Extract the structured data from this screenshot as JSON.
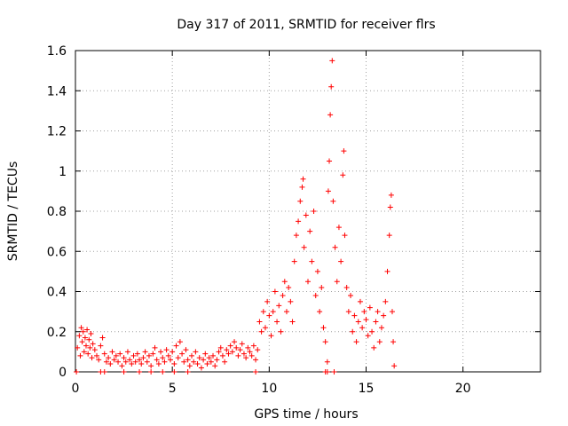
{
  "chart_data": {
    "type": "scatter",
    "title": "Day 317 of 2011, SRMTID for receiver flrs",
    "xlabel": "GPS time / hours",
    "ylabel": "SRMTID / TECUs",
    "xlim": [
      0,
      24
    ],
    "ylim": [
      0,
      1.6
    ],
    "xticks": [
      0,
      5,
      10,
      15,
      20
    ],
    "xtick_labels": [
      "0",
      "5",
      "10",
      "15",
      "20"
    ],
    "yticks": [
      0,
      0.2,
      0.4,
      0.6,
      0.8,
      1.0,
      1.2,
      1.4,
      1.6
    ],
    "ytick_labels": [
      "0",
      "0.2",
      "0.4",
      "0.6",
      "0.8",
      "1",
      "1.2",
      "1.4",
      "1.6"
    ],
    "grid": true,
    "marker": "+",
    "series": [
      {
        "name": "SRMTID",
        "color": "#ff0000",
        "points": [
          [
            0.1,
            0.12
          ],
          [
            0.2,
            0.18
          ],
          [
            0.25,
            0.08
          ],
          [
            0.3,
            0.22
          ],
          [
            0.35,
            0.15
          ],
          [
            0.4,
            0.2
          ],
          [
            0.45,
            0.1
          ],
          [
            0.5,
            0.17
          ],
          [
            0.55,
            0.13
          ],
          [
            0.6,
            0.21
          ],
          [
            0.65,
            0.09
          ],
          [
            0.7,
            0.16
          ],
          [
            0.75,
            0.12
          ],
          [
            0.8,
            0.19
          ],
          [
            0.85,
            0.07
          ],
          [
            0.9,
            0.14
          ],
          [
            1.0,
            0.11
          ],
          [
            1.1,
            0.08
          ],
          [
            1.2,
            0.06
          ],
          [
            1.3,
            0.13
          ],
          [
            1.4,
            0.17
          ],
          [
            1.5,
            0.09
          ],
          [
            1.6,
            0.05
          ],
          [
            1.7,
            0.07
          ],
          [
            1.8,
            0.04
          ],
          [
            1.9,
            0.1
          ],
          [
            2.0,
            0.06
          ],
          [
            2.1,
            0.08
          ],
          [
            2.2,
            0.05
          ],
          [
            2.3,
            0.09
          ],
          [
            2.4,
            0.03
          ],
          [
            2.5,
            0.07
          ],
          [
            2.6,
            0.05
          ],
          [
            2.7,
            0.1
          ],
          [
            2.8,
            0.06
          ],
          [
            2.9,
            0.04
          ],
          [
            3.0,
            0.08
          ],
          [
            3.1,
            0.05
          ],
          [
            3.2,
            0.09
          ],
          [
            3.3,
            0.06
          ],
          [
            3.4,
            0.04
          ],
          [
            3.5,
            0.07
          ],
          [
            3.6,
            0.1
          ],
          [
            3.7,
            0.05
          ],
          [
            3.8,
            0.08
          ],
          [
            3.9,
            0.03
          ],
          [
            4.0,
            0.09
          ],
          [
            4.1,
            0.12
          ],
          [
            4.2,
            0.06
          ],
          [
            4.3,
            0.04
          ],
          [
            4.4,
            0.1
          ],
          [
            4.5,
            0.07
          ],
          [
            4.6,
            0.05
          ],
          [
            4.7,
            0.11
          ],
          [
            4.8,
            0.08
          ],
          [
            4.9,
            0.06
          ],
          [
            5.0,
            0.1
          ],
          [
            5.1,
            0.04
          ],
          [
            5.2,
            0.13
          ],
          [
            5.3,
            0.07
          ],
          [
            5.4,
            0.15
          ],
          [
            5.5,
            0.09
          ],
          [
            5.6,
            0.05
          ],
          [
            5.7,
            0.11
          ],
          [
            5.8,
            0.06
          ],
          [
            5.9,
            0.03
          ],
          [
            6.0,
            0.08
          ],
          [
            6.1,
            0.05
          ],
          [
            6.2,
            0.1
          ],
          [
            6.3,
            0.04
          ],
          [
            6.4,
            0.07
          ],
          [
            6.5,
            0.02
          ],
          [
            6.6,
            0.06
          ],
          [
            6.7,
            0.09
          ],
          [
            6.8,
            0.04
          ],
          [
            6.9,
            0.07
          ],
          [
            7.0,
            0.05
          ],
          [
            7.1,
            0.08
          ],
          [
            7.2,
            0.03
          ],
          [
            7.3,
            0.06
          ],
          [
            7.4,
            0.1
          ],
          [
            7.5,
            0.12
          ],
          [
            7.6,
            0.08
          ],
          [
            7.7,
            0.05
          ],
          [
            7.8,
            0.11
          ],
          [
            7.9,
            0.09
          ],
          [
            8.0,
            0.13
          ],
          [
            8.1,
            0.1
          ],
          [
            8.2,
            0.15
          ],
          [
            8.3,
            0.12
          ],
          [
            8.4,
            0.08
          ],
          [
            8.5,
            0.11
          ],
          [
            8.6,
            0.14
          ],
          [
            8.7,
            0.09
          ],
          [
            8.8,
            0.07
          ],
          [
            8.9,
            0.12
          ],
          [
            9.0,
            0.1
          ],
          [
            9.1,
            0.08
          ],
          [
            9.2,
            0.13
          ],
          [
            9.3,
            0.06
          ],
          [
            9.4,
            0.11
          ],
          [
            9.5,
            0.25
          ],
          [
            9.6,
            0.2
          ],
          [
            9.7,
            0.3
          ],
          [
            9.8,
            0.22
          ],
          [
            9.9,
            0.35
          ],
          [
            10.0,
            0.28
          ],
          [
            10.1,
            0.18
          ],
          [
            10.2,
            0.3
          ],
          [
            10.3,
            0.4
          ],
          [
            10.4,
            0.25
          ],
          [
            10.5,
            0.33
          ],
          [
            10.6,
            0.2
          ],
          [
            10.7,
            0.38
          ],
          [
            10.8,
            0.45
          ],
          [
            10.9,
            0.3
          ],
          [
            11.0,
            0.42
          ],
          [
            11.1,
            0.35
          ],
          [
            11.2,
            0.25
          ],
          [
            11.3,
            0.55
          ],
          [
            11.4,
            0.68
          ],
          [
            11.5,
            0.75
          ],
          [
            11.6,
            0.85
          ],
          [
            11.7,
            0.92
          ],
          [
            11.75,
            0.96
          ],
          [
            11.8,
            0.62
          ],
          [
            11.9,
            0.78
          ],
          [
            12.0,
            0.45
          ],
          [
            12.1,
            0.7
          ],
          [
            12.2,
            0.55
          ],
          [
            12.3,
            0.8
          ],
          [
            12.4,
            0.38
          ],
          [
            12.5,
            0.5
          ],
          [
            12.6,
            0.3
          ],
          [
            12.7,
            0.42
          ],
          [
            12.8,
            0.22
          ],
          [
            12.9,
            0.15
          ],
          [
            13.0,
            0.05
          ],
          [
            13.05,
            0.9
          ],
          [
            13.1,
            1.05
          ],
          [
            13.15,
            1.28
          ],
          [
            13.2,
            1.42
          ],
          [
            13.25,
            1.55
          ],
          [
            13.3,
            0.85
          ],
          [
            13.4,
            0.62
          ],
          [
            13.5,
            0.45
          ],
          [
            13.6,
            0.72
          ],
          [
            13.7,
            0.55
          ],
          [
            13.8,
            0.98
          ],
          [
            13.85,
            1.1
          ],
          [
            13.9,
            0.68
          ],
          [
            14.0,
            0.42
          ],
          [
            14.1,
            0.3
          ],
          [
            14.2,
            0.38
          ],
          [
            14.3,
            0.2
          ],
          [
            14.4,
            0.28
          ],
          [
            14.5,
            0.15
          ],
          [
            14.6,
            0.25
          ],
          [
            14.7,
            0.35
          ],
          [
            14.8,
            0.22
          ],
          [
            14.9,
            0.3
          ],
          [
            15.0,
            0.26
          ],
          [
            15.1,
            0.18
          ],
          [
            15.2,
            0.32
          ],
          [
            15.3,
            0.2
          ],
          [
            15.4,
            0.12
          ],
          [
            15.5,
            0.25
          ],
          [
            15.6,
            0.3
          ],
          [
            15.7,
            0.15
          ],
          [
            15.8,
            0.22
          ],
          [
            15.9,
            0.28
          ],
          [
            16.0,
            0.35
          ],
          [
            16.1,
            0.5
          ],
          [
            16.2,
            0.68
          ],
          [
            16.25,
            0.82
          ],
          [
            16.3,
            0.88
          ],
          [
            16.35,
            0.3
          ],
          [
            16.4,
            0.15
          ],
          [
            16.45,
            0.03
          ],
          [
            0.05,
            0.0
          ],
          [
            1.3,
            0.0
          ],
          [
            1.5,
            0.0
          ],
          [
            2.5,
            0.0
          ],
          [
            3.3,
            0.0
          ],
          [
            3.9,
            0.0
          ],
          [
            4.5,
            0.0
          ],
          [
            5.1,
            0.0
          ],
          [
            5.8,
            0.0
          ],
          [
            9.3,
            0.0
          ],
          [
            12.9,
            0.0
          ],
          [
            13.0,
            0.0
          ],
          [
            13.35,
            0.0
          ]
        ]
      }
    ]
  }
}
